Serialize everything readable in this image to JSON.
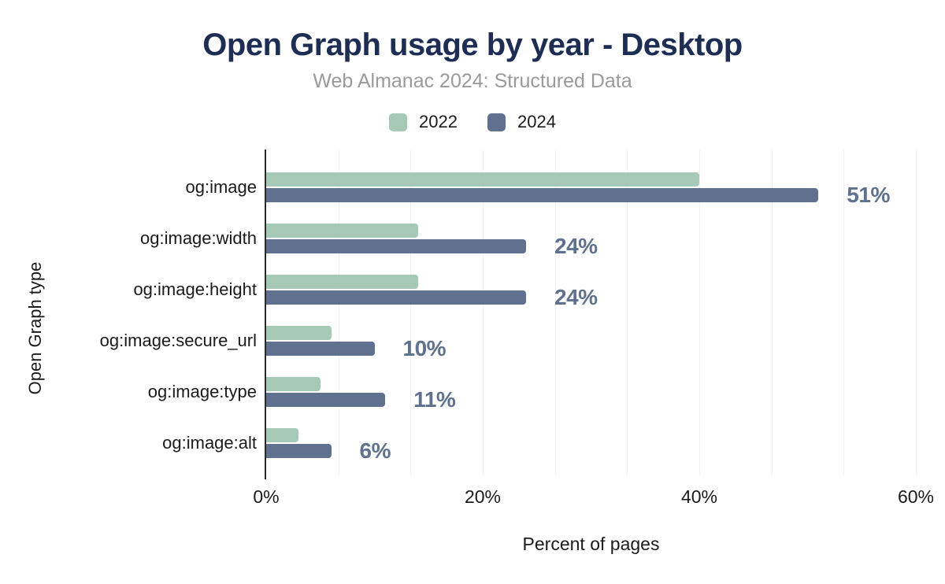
{
  "title": "Open Graph usage by year - Desktop",
  "subtitle": "Web Almanac 2024: Structured Data",
  "colors": {
    "background": "#ffffff",
    "title_text": "#1e2d54",
    "subtitle_text": "#9a9a9a",
    "axis_text": "#1b1b1b",
    "gridline": "#f3f3f3",
    "axis_line": "#2a2a2a",
    "series_2022": "#a5c8b7",
    "series_2024": "#5f718e",
    "value_label_text": "#5f718e"
  },
  "chart_data": {
    "type": "bar",
    "orientation": "horizontal",
    "title": "Open Graph usage by year - Desktop",
    "subtitle": "Web Almanac 2024: Structured Data",
    "xlabel": "Percent of pages",
    "ylabel": "Open Graph type",
    "categories": [
      "og:image",
      "og:image:width",
      "og:image:height",
      "og:image:secure_url",
      "og:image:type",
      "og:image:alt"
    ],
    "series": [
      {
        "name": "2022",
        "color": "#a5c8b7",
        "values": [
          40,
          14,
          14,
          6,
          5,
          3
        ]
      },
      {
        "name": "2024",
        "color": "#5f718e",
        "values": [
          51,
          24,
          24,
          10,
          11,
          6
        ],
        "labels": [
          "51%",
          "24%",
          "24%",
          "10%",
          "11%",
          "6%"
        ]
      }
    ],
    "x_ticks": [
      {
        "label": "0%",
        "value": 0
      },
      {
        "label": "20%",
        "value": 20
      },
      {
        "label": "40%",
        "value": 40
      },
      {
        "label": "60%",
        "value": 60
      }
    ],
    "xlim": [
      0,
      60
    ],
    "grid": "vertical gridlines every 6.67%, only 2024 series has data labels",
    "legend_position": "top-center"
  }
}
